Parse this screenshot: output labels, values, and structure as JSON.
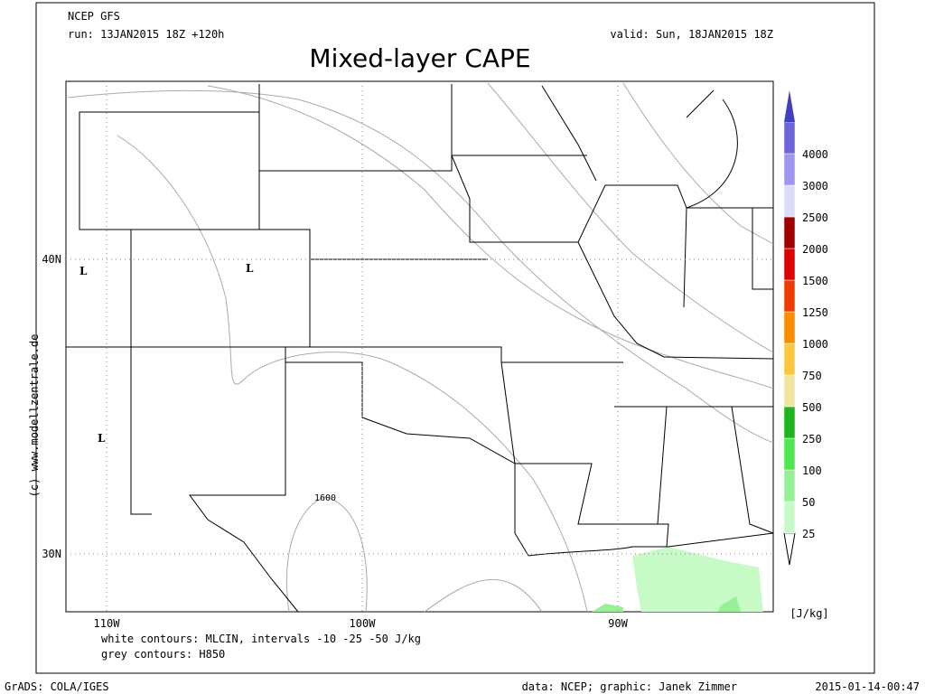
{
  "header": {
    "model": "NCEP GFS",
    "run": "run: 13JAN2015 18Z +120h",
    "valid": "valid: Sun, 18JAN2015 18Z",
    "title": "Mixed-layer CAPE"
  },
  "map": {
    "lat_labels": [
      "40N",
      "30N"
    ],
    "lon_labels": [
      "110W",
      "100W",
      "90W"
    ],
    "lows": [
      "L",
      "L",
      "L"
    ],
    "contour_label": "1600",
    "copyright": "(c) www.modellzentrale.de"
  },
  "colorbar": {
    "unit": "[J/kg]",
    "levels": [
      {
        "label": "25",
        "color": "#c8fac8"
      },
      {
        "label": "50",
        "color": "#96f096"
      },
      {
        "label": "100",
        "color": "#50e650"
      },
      {
        "label": "250",
        "color": "#1eb41e"
      },
      {
        "label": "500",
        "color": "#f0e6a0"
      },
      {
        "label": "750",
        "color": "#fac83c"
      },
      {
        "label": "1000",
        "color": "#fa8c00"
      },
      {
        "label": "1250",
        "color": "#f03c00"
      },
      {
        "label": "1500",
        "color": "#dc0000"
      },
      {
        "label": "2000",
        "color": "#a00000"
      },
      {
        "label": "2500",
        "color": "#dcdcf8"
      },
      {
        "label": "3000",
        "color": "#a096f0"
      },
      {
        "label": "4000",
        "color": "#6e64dc"
      }
    ],
    "top_color": "#4040c0"
  },
  "notes": [
    "white contours: MLCIN, intervals -10 -25 -50 J/kg",
    "grey contours: H850"
  ],
  "footer": {
    "left": "GrADS: COLA/IGES",
    "credit": "data: NCEP; graphic: Janek Zimmer",
    "date": "2015-01-14-00:47"
  }
}
